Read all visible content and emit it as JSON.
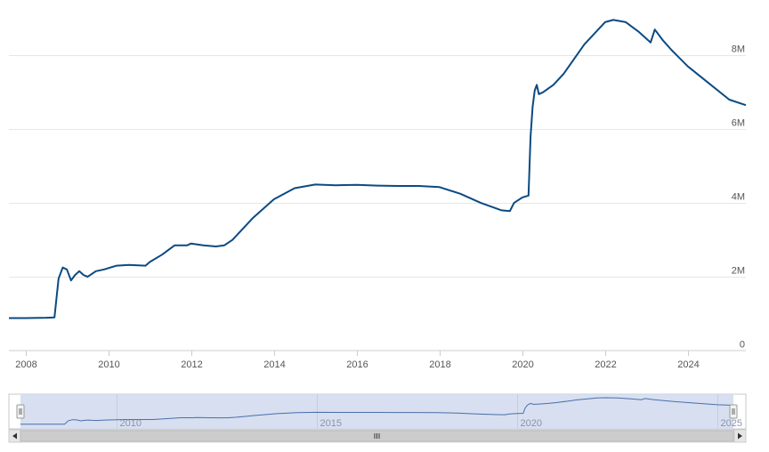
{
  "chart_data": {
    "type": "line",
    "title": "",
    "xlabel": "",
    "ylabel": "",
    "xlim": [
      2007.6,
      2025.4
    ],
    "ylim": [
      0,
      9500000
    ],
    "grid": true,
    "legend": "none",
    "colors": {
      "line": "#0b4a82",
      "grid": "#e6e6e6",
      "navigator_fill": "#d3dcef",
      "scrollbar": "#d9d9d9"
    },
    "x_ticks": [
      {
        "value": 2008,
        "label": "2008"
      },
      {
        "value": 2010,
        "label": "2010"
      },
      {
        "value": 2012,
        "label": "2012"
      },
      {
        "value": 2014,
        "label": "2014"
      },
      {
        "value": 2016,
        "label": "2016"
      },
      {
        "value": 2018,
        "label": "2018"
      },
      {
        "value": 2020,
        "label": "2020"
      },
      {
        "value": 2022,
        "label": "2022"
      },
      {
        "value": 2024,
        "label": "2024"
      }
    ],
    "y_ticks": [
      {
        "value": 0,
        "label": "0"
      },
      {
        "value": 2000000,
        "label": "2M"
      },
      {
        "value": 4000000,
        "label": "4M"
      },
      {
        "value": 6000000,
        "label": "6M"
      },
      {
        "value": 8000000,
        "label": "8M"
      }
    ],
    "series": [
      {
        "x": [
          2007.6,
          2008.0,
          2008.5,
          2008.7,
          2008.8,
          2008.9,
          2009.0,
          2009.1,
          2009.2,
          2009.3,
          2009.4,
          2009.5,
          2009.7,
          2009.9,
          2010.2,
          2010.5,
          2010.9,
          2011.0,
          2011.3,
          2011.6,
          2011.9,
          2012.0,
          2012.3,
          2012.6,
          2012.8,
          2013.0,
          2013.5,
          2014.0,
          2014.5,
          2015.0,
          2015.5,
          2016.0,
          2016.5,
          2017.0,
          2017.5,
          2018.0,
          2018.5,
          2019.0,
          2019.5,
          2019.7,
          2019.8,
          2020.0,
          2020.15,
          2020.2,
          2020.25,
          2020.3,
          2020.35,
          2020.4,
          2020.5,
          2020.75,
          2021.0,
          2021.5,
          2022.0,
          2022.2,
          2022.5,
          2022.8,
          2023.1,
          2023.2,
          2023.4,
          2023.6,
          2024.0,
          2024.5,
          2025.0,
          2025.4
        ],
        "y": [
          880000,
          880000,
          890000,
          900000,
          1950000,
          2250000,
          2200000,
          1900000,
          2050000,
          2150000,
          2050000,
          2000000,
          2150000,
          2200000,
          2300000,
          2320000,
          2300000,
          2400000,
          2600000,
          2850000,
          2850000,
          2900000,
          2850000,
          2820000,
          2850000,
          3000000,
          3600000,
          4100000,
          4400000,
          4500000,
          4480000,
          4490000,
          4470000,
          4460000,
          4460000,
          4430000,
          4250000,
          4000000,
          3800000,
          3780000,
          4000000,
          4150000,
          4200000,
          5800000,
          6600000,
          7050000,
          7200000,
          6950000,
          7000000,
          7200000,
          7500000,
          8300000,
          8900000,
          8960000,
          8900000,
          8650000,
          8350000,
          8700000,
          8400000,
          8150000,
          7700000,
          7250000,
          6800000,
          6650000
        ]
      }
    ],
    "navigator": {
      "x_ticks": [
        {
          "value": 2010,
          "label": "2010"
        },
        {
          "value": 2015,
          "label": "2015"
        },
        {
          "value": 2020,
          "label": "2020"
        },
        {
          "value": 2025,
          "label": "2025"
        }
      ]
    }
  }
}
